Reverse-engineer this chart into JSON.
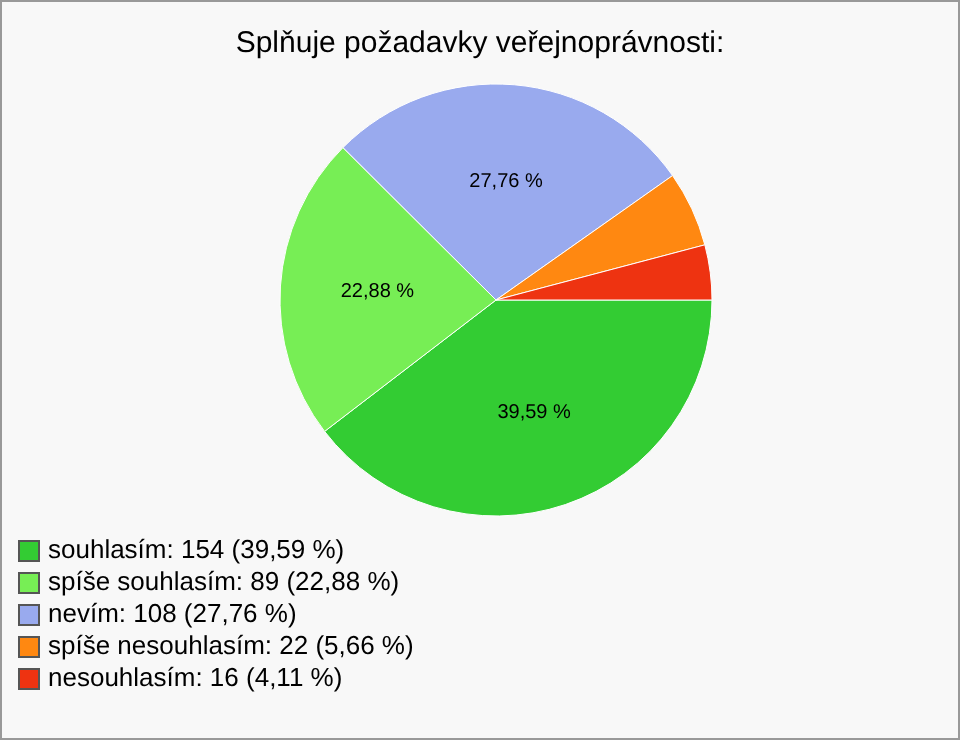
{
  "chart_data": {
    "type": "pie",
    "title": "Splňuje požadavky veřejnoprávnosti:",
    "categories": [
      "souhlasím: 154 (39,59 %)",
      "spíše souhlasím: 89 (22,88 %)",
      "nevím: 108 (27,76 %)",
      "spíše nesouhlasím: 22 (5,66 %)",
      "nesouhlasím: 16 (4,11 %)"
    ],
    "values": [
      39.59,
      22.88,
      27.76,
      5.66,
      4.11
    ],
    "colors": [
      "#33cc33",
      "#77ee55",
      "#99aaee",
      "#ff8811",
      "#ee3311"
    ],
    "value_labels": [
      "39,59 %",
      "22,88 %",
      "27,76 %",
      null,
      null
    ],
    "legend": "bottom left"
  }
}
